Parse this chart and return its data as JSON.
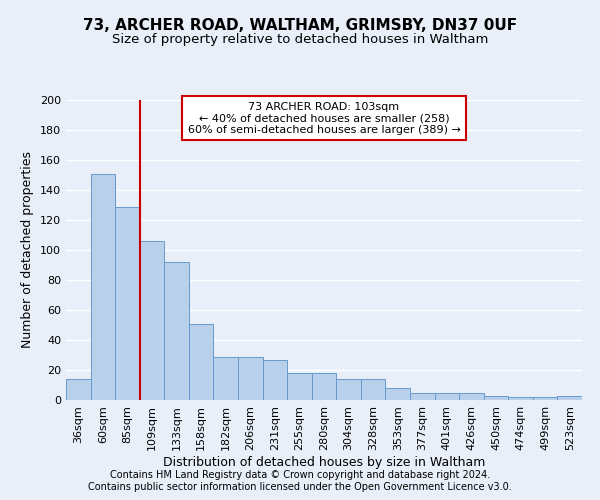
{
  "title": "73, ARCHER ROAD, WALTHAM, GRIMSBY, DN37 0UF",
  "subtitle": "Size of property relative to detached houses in Waltham",
  "xlabel": "Distribution of detached houses by size in Waltham",
  "ylabel": "Number of detached properties",
  "categories": [
    "36sqm",
    "60sqm",
    "85sqm",
    "109sqm",
    "133sqm",
    "158sqm",
    "182sqm",
    "206sqm",
    "231sqm",
    "255sqm",
    "280sqm",
    "304sqm",
    "328sqm",
    "353sqm",
    "377sqm",
    "401sqm",
    "426sqm",
    "450sqm",
    "474sqm",
    "499sqm",
    "523sqm"
  ],
  "values": [
    14,
    151,
    129,
    106,
    92,
    51,
    29,
    29,
    27,
    18,
    18,
    14,
    14,
    8,
    5,
    5,
    5,
    3,
    2,
    2,
    3
  ],
  "bar_color": "#b8d0ea",
  "bar_edge_color": "#6699cc",
  "ylim": [
    0,
    200
  ],
  "yticks": [
    0,
    20,
    40,
    60,
    80,
    100,
    120,
    140,
    160,
    180,
    200
  ],
  "vline_x_idx": 3,
  "vline_color": "#cc0000",
  "annotation_text": "73 ARCHER ROAD: 103sqm\n← 40% of detached houses are smaller (258)\n60% of semi-detached houses are larger (389) →",
  "annotation_box_color": "#ffffff",
  "annotation_box_edge": "#cc0000",
  "footer1": "Contains HM Land Registry data © Crown copyright and database right 2024.",
  "footer2": "Contains public sector information licensed under the Open Government Licence v3.0.",
  "background_color": "#e8eff9",
  "grid_color": "#ffffff",
  "title_fontsize": 11,
  "subtitle_fontsize": 9.5,
  "axis_label_fontsize": 9,
  "tick_fontsize": 8,
  "footer_fontsize": 7
}
